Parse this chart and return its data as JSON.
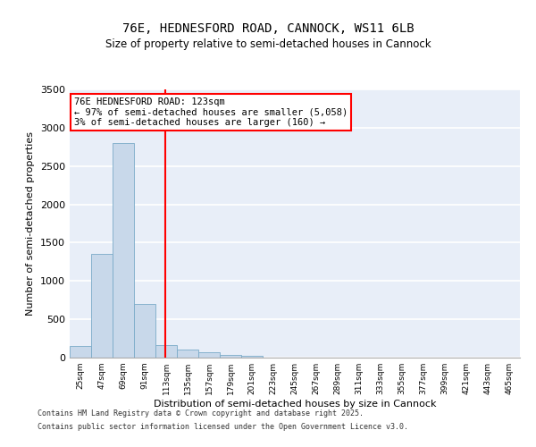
{
  "title_line1": "76E, HEDNESFORD ROAD, CANNOCK, WS11 6LB",
  "title_line2": "Size of property relative to semi-detached houses in Cannock",
  "xlabel": "Distribution of semi-detached houses by size in Cannock",
  "ylabel": "Number of semi-detached properties",
  "annotation_line1": "76E HEDNESFORD ROAD: 123sqm",
  "annotation_line2": "← 97% of semi-detached houses are smaller (5,058)",
  "annotation_line3": "3% of semi-detached houses are larger (160) →",
  "property_size": 123,
  "bin_labels": [
    "25sqm",
    "47sqm",
    "69sqm",
    "91sqm",
    "113sqm",
    "135sqm",
    "157sqm",
    "179sqm",
    "201sqm",
    "223sqm",
    "245sqm",
    "267sqm",
    "289sqm",
    "311sqm",
    "333sqm",
    "355sqm",
    "377sqm",
    "399sqm",
    "421sqm",
    "443sqm",
    "465sqm"
  ],
  "bin_edges": [
    25,
    47,
    69,
    91,
    113,
    135,
    157,
    179,
    201,
    223,
    245,
    267,
    289,
    311,
    333,
    355,
    377,
    399,
    421,
    443,
    465,
    487
  ],
  "bar_values": [
    150,
    1350,
    2800,
    700,
    160,
    110,
    70,
    40,
    20,
    5,
    3,
    2,
    1,
    0,
    0,
    0,
    0,
    0,
    0,
    0,
    0
  ],
  "bar_color": "#c8d8ea",
  "bar_edge_color": "#7aaac8",
  "vline_color": "red",
  "vline_x": 123,
  "background_color": "#e8eef8",
  "grid_color": "white",
  "ylim": [
    0,
    3500
  ],
  "yticks": [
    0,
    500,
    1000,
    1500,
    2000,
    2500,
    3000,
    3500
  ],
  "footer_line1": "Contains HM Land Registry data © Crown copyright and database right 2025.",
  "footer_line2": "Contains public sector information licensed under the Open Government Licence v3.0."
}
